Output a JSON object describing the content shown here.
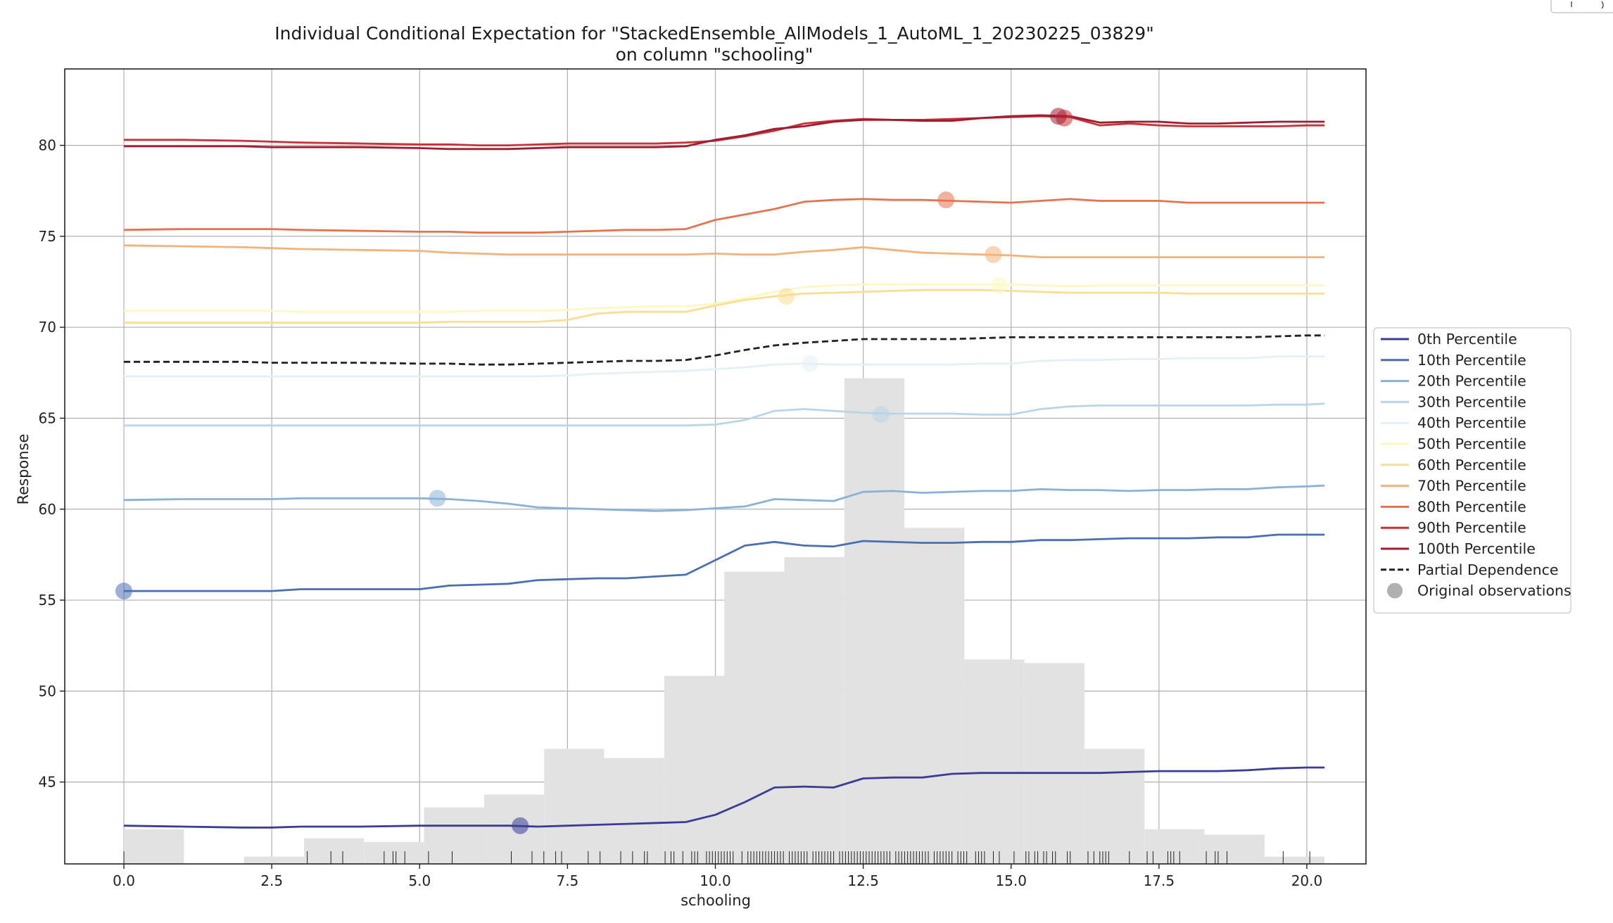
{
  "chart_data": {
    "type": "line",
    "title": "Individual Conditional Expectation for \"StackedEnsemble_AllModels_1_AutoML_1_20230225_03829\"",
    "subtitle": "on column \"schooling\"",
    "xlabel": "schooling",
    "ylabel": "Response",
    "xlim": [
      -1.0,
      21.0
    ],
    "ylim": [
      40.5,
      84.2
    ],
    "xticks": [
      0.0,
      2.5,
      5.0,
      7.5,
      10.0,
      12.5,
      15.0,
      17.5,
      20.0
    ],
    "xtick_labels": [
      "0.0",
      "2.5",
      "5.0",
      "7.5",
      "10.0",
      "12.5",
      "15.0",
      "17.5",
      "20.0"
    ],
    "yticks": [
      45,
      50,
      55,
      60,
      65,
      70,
      75,
      80
    ],
    "ytick_labels": [
      "45",
      "50",
      "55",
      "60",
      "65",
      "70",
      "75",
      "80"
    ],
    "grid": true,
    "legend_position": "right",
    "x": [
      0,
      1,
      2,
      2.5,
      3,
      4,
      5,
      5.5,
      6,
      6.5,
      7,
      7.5,
      8,
      8.5,
      9,
      9.5,
      10,
      10.5,
      11,
      11.5,
      12,
      12.5,
      13,
      13.5,
      14,
      14.5,
      15,
      15.5,
      16,
      16.5,
      17,
      17.5,
      18,
      18.5,
      19,
      19.5,
      20,
      20.3
    ],
    "series": [
      {
        "name": "0th Percentile",
        "color": "#3b3c95",
        "values": [
          42.6,
          42.55,
          42.5,
          42.5,
          42.55,
          42.55,
          42.6,
          42.6,
          42.6,
          42.6,
          42.55,
          42.6,
          42.65,
          42.7,
          42.75,
          42.8,
          43.2,
          43.9,
          44.7,
          44.75,
          44.7,
          45.2,
          45.25,
          45.25,
          45.45,
          45.5,
          45.5,
          45.5,
          45.5,
          45.5,
          45.55,
          45.6,
          45.6,
          45.6,
          45.65,
          45.75,
          45.8,
          45.8
        ],
        "obs": [
          6.7,
          42.6
        ]
      },
      {
        "name": "10th Percentile",
        "color": "#4b6fb3",
        "values": [
          55.5,
          55.5,
          55.5,
          55.5,
          55.6,
          55.6,
          55.6,
          55.8,
          55.85,
          55.9,
          56.1,
          56.15,
          56.2,
          56.2,
          56.3,
          56.4,
          57.2,
          58.0,
          58.2,
          58.0,
          57.95,
          58.25,
          58.2,
          58.15,
          58.15,
          58.2,
          58.2,
          58.3,
          58.3,
          58.35,
          58.4,
          58.4,
          58.4,
          58.45,
          58.45,
          58.6,
          58.6,
          58.6
        ],
        "obs": [
          0.0,
          55.5
        ]
      },
      {
        "name": "20th Percentile",
        "color": "#8ab2d8",
        "values": [
          60.5,
          60.55,
          60.55,
          60.55,
          60.6,
          60.6,
          60.6,
          60.55,
          60.45,
          60.3,
          60.1,
          60.05,
          60.0,
          59.95,
          59.9,
          59.95,
          60.05,
          60.15,
          60.55,
          60.5,
          60.45,
          60.95,
          61.0,
          60.9,
          60.95,
          61.0,
          61.0,
          61.1,
          61.05,
          61.05,
          61.0,
          61.05,
          61.05,
          61.1,
          61.1,
          61.2,
          61.25,
          61.3
        ],
        "obs": [
          5.3,
          60.6
        ]
      },
      {
        "name": "30th Percentile",
        "color": "#b8d6e8",
        "values": [
          64.6,
          64.6,
          64.6,
          64.6,
          64.6,
          64.6,
          64.6,
          64.6,
          64.6,
          64.6,
          64.6,
          64.6,
          64.6,
          64.6,
          64.6,
          64.6,
          64.65,
          64.9,
          65.4,
          65.5,
          65.4,
          65.3,
          65.25,
          65.25,
          65.25,
          65.2,
          65.2,
          65.5,
          65.65,
          65.7,
          65.7,
          65.7,
          65.7,
          65.7,
          65.7,
          65.75,
          65.75,
          65.8
        ],
        "obs": [
          12.8,
          65.2
        ]
      },
      {
        "name": "40th Percentile",
        "color": "#e4f0f6",
        "values": [
          67.3,
          67.3,
          67.3,
          67.3,
          67.3,
          67.3,
          67.3,
          67.3,
          67.3,
          67.3,
          67.3,
          67.35,
          67.45,
          67.5,
          67.55,
          67.6,
          67.7,
          67.8,
          67.95,
          68.0,
          67.95,
          67.95,
          67.95,
          67.95,
          67.95,
          68.0,
          68.0,
          68.15,
          68.2,
          68.2,
          68.25,
          68.25,
          68.3,
          68.3,
          68.3,
          68.4,
          68.4,
          68.4
        ],
        "obs": [
          11.6,
          68.0
        ]
      },
      {
        "name": "50th Percentile",
        "color": "#fbf8c3",
        "values": [
          70.9,
          70.9,
          70.9,
          70.9,
          70.85,
          70.85,
          70.85,
          70.85,
          70.9,
          70.9,
          70.9,
          70.95,
          71.05,
          71.1,
          71.15,
          71.15,
          71.3,
          71.6,
          71.95,
          72.2,
          72.3,
          72.35,
          72.35,
          72.35,
          72.35,
          72.35,
          72.35,
          72.3,
          72.25,
          72.3,
          72.3,
          72.3,
          72.3,
          72.3,
          72.3,
          72.3,
          72.3,
          72.3
        ],
        "obs": [
          14.8,
          72.3
        ]
      },
      {
        "name": "60th Percentile",
        "color": "#f8df93",
        "values": [
          70.25,
          70.25,
          70.25,
          70.25,
          70.25,
          70.25,
          70.25,
          70.3,
          70.3,
          70.3,
          70.3,
          70.4,
          70.75,
          70.85,
          70.85,
          70.85,
          71.2,
          71.5,
          71.7,
          71.85,
          71.9,
          71.95,
          72.0,
          72.05,
          72.05,
          72.05,
          72.0,
          71.95,
          71.9,
          71.9,
          71.9,
          71.9,
          71.85,
          71.85,
          71.85,
          71.85,
          71.85,
          71.85
        ],
        "obs": [
          11.2,
          71.7
        ]
      },
      {
        "name": "70th Percentile",
        "color": "#f2b27a",
        "values": [
          74.5,
          74.45,
          74.4,
          74.35,
          74.3,
          74.25,
          74.2,
          74.1,
          74.05,
          74.0,
          74.0,
          74.0,
          74.0,
          74.0,
          74.0,
          74.0,
          74.05,
          74.0,
          74.0,
          74.15,
          74.25,
          74.4,
          74.25,
          74.1,
          74.05,
          74.0,
          73.95,
          73.85,
          73.85,
          73.85,
          73.85,
          73.85,
          73.85,
          73.85,
          73.85,
          73.85,
          73.85,
          73.85
        ],
        "obs": [
          14.7,
          74.0
        ]
      },
      {
        "name": "80th Percentile",
        "color": "#e4734f",
        "values": [
          75.35,
          75.4,
          75.4,
          75.4,
          75.35,
          75.3,
          75.25,
          75.25,
          75.2,
          75.2,
          75.2,
          75.25,
          75.3,
          75.35,
          75.35,
          75.4,
          75.9,
          76.2,
          76.5,
          76.9,
          77.0,
          77.05,
          77.0,
          77.0,
          76.95,
          76.9,
          76.85,
          76.95,
          77.05,
          76.95,
          76.95,
          76.95,
          76.85,
          76.85,
          76.85,
          76.85,
          76.85,
          76.85
        ],
        "obs": [
          13.9,
          77.0
        ]
      },
      {
        "name": "90th Percentile",
        "color": "#c8323a",
        "values": [
          80.3,
          80.3,
          80.25,
          80.2,
          80.15,
          80.1,
          80.05,
          80.05,
          80.0,
          80.0,
          80.05,
          80.1,
          80.1,
          80.1,
          80.1,
          80.15,
          80.25,
          80.5,
          80.8,
          81.2,
          81.35,
          81.45,
          81.4,
          81.4,
          81.45,
          81.5,
          81.55,
          81.6,
          81.55,
          81.1,
          81.2,
          81.1,
          81.05,
          81.05,
          81.05,
          81.05,
          81.1,
          81.1
        ],
        "obs": [
          15.9,
          81.5
        ]
      },
      {
        "name": "100th Percentile",
        "color": "#a01d30",
        "values": [
          79.95,
          79.95,
          79.95,
          79.9,
          79.9,
          79.9,
          79.85,
          79.8,
          79.8,
          79.8,
          79.85,
          79.9,
          79.9,
          79.9,
          79.9,
          79.95,
          80.3,
          80.55,
          80.9,
          81.05,
          81.3,
          81.4,
          81.4,
          81.35,
          81.35,
          81.5,
          81.6,
          81.65,
          81.6,
          81.25,
          81.3,
          81.3,
          81.2,
          81.2,
          81.25,
          81.3,
          81.3,
          81.3
        ],
        "obs": [
          15.8,
          81.6
        ]
      },
      {
        "name": "Partial Dependence",
        "color": "#222222",
        "dashed": true,
        "values": [
          68.1,
          68.1,
          68.1,
          68.05,
          68.05,
          68.05,
          68.0,
          68.0,
          67.95,
          67.95,
          68.0,
          68.05,
          68.1,
          68.15,
          68.15,
          68.2,
          68.45,
          68.75,
          69.0,
          69.15,
          69.25,
          69.35,
          69.35,
          69.35,
          69.35,
          69.4,
          69.45,
          69.45,
          69.45,
          69.45,
          69.45,
          69.45,
          69.45,
          69.45,
          69.45,
          69.5,
          69.55,
          69.55
        ]
      }
    ],
    "histogram": {
      "bin_edges": [
        0.0,
        1.015,
        2.03,
        3.045,
        4.06,
        5.075,
        6.09,
        7.105,
        8.12,
        9.135,
        10.15,
        11.165,
        12.18,
        13.195,
        14.21,
        15.225,
        16.24,
        17.255,
        18.27,
        19.285,
        20.3
      ],
      "counts": [
        1.9,
        0.0,
        0.4,
        1.4,
        1.2,
        3.1,
        3.8,
        6.3,
        5.8,
        10.3,
        16.0,
        16.8,
        26.6,
        18.4,
        11.2,
        11.0,
        6.3,
        1.9,
        1.6,
        0.4
      ],
      "bar_color": "#e2e2e2"
    },
    "legend_entries": [
      "0th Percentile",
      "10th Percentile",
      "20th Percentile",
      "30th Percentile",
      "40th Percentile",
      "50th Percentile",
      "60th Percentile",
      "70th Percentile",
      "80th Percentile",
      "90th Percentile",
      "100th Percentile",
      "Partial Dependence",
      "Original observations"
    ],
    "observation_marker_color": "#b0b0b0"
  }
}
